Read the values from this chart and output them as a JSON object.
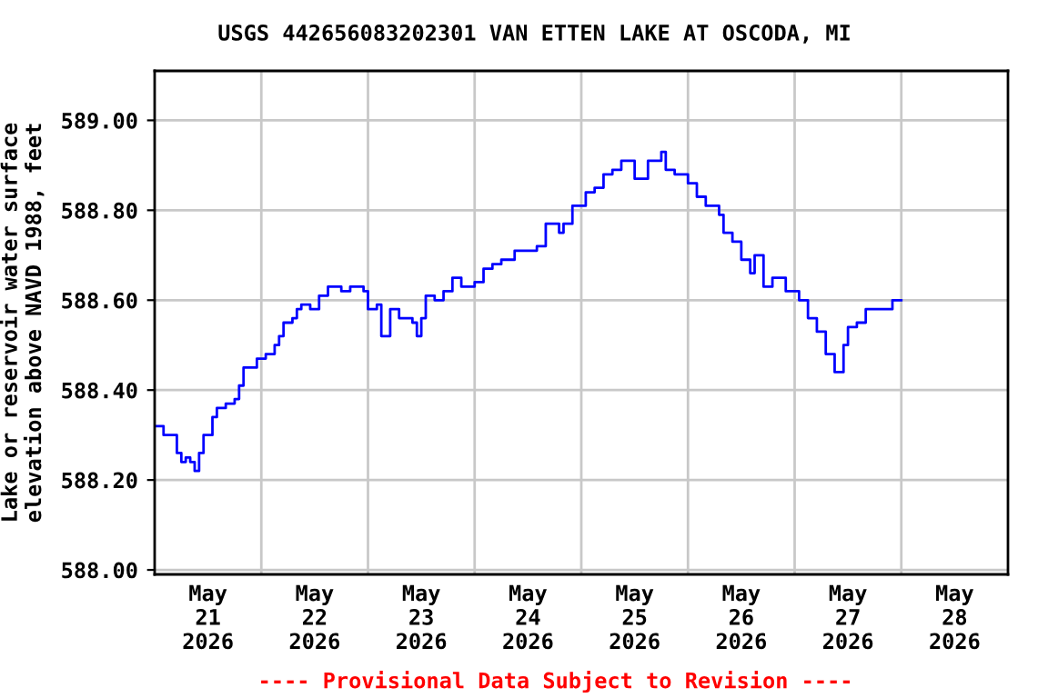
{
  "chart_data": {
    "type": "step",
    "title": "USGS 442656083202301 VAN ETTEN LAKE AT OSCODA, MI",
    "ylabel": "Lake or reservoir water surface\nelevation above NAVD 1988, feet",
    "annotations": [
      "---- Provisional Data Subject to Revision ----"
    ],
    "x": [
      "2026-05-21T00:00",
      "2026-05-21T02:00",
      "2026-05-21T04:00",
      "2026-05-21T05:00",
      "2026-05-21T06:00",
      "2026-05-21T07:00",
      "2026-05-21T08:00",
      "2026-05-21T09:00",
      "2026-05-21T10:00",
      "2026-05-21T11:00",
      "2026-05-21T13:00",
      "2026-05-21T14:00",
      "2026-05-21T16:00",
      "2026-05-21T18:00",
      "2026-05-21T19:00",
      "2026-05-21T20:00",
      "2026-05-21T23:00",
      "2026-05-22T01:00",
      "2026-05-22T03:00",
      "2026-05-22T04:00",
      "2026-05-22T05:00",
      "2026-05-22T07:00",
      "2026-05-22T08:00",
      "2026-05-22T09:00",
      "2026-05-22T11:00",
      "2026-05-22T13:00",
      "2026-05-22T15:00",
      "2026-05-22T18:00",
      "2026-05-22T20:00",
      "2026-05-22T23:00",
      "2026-05-23T00:00",
      "2026-05-23T02:00",
      "2026-05-23T03:00",
      "2026-05-23T05:00",
      "2026-05-23T07:00",
      "2026-05-23T10:00",
      "2026-05-23T11:00",
      "2026-05-23T12:00",
      "2026-05-23T13:00",
      "2026-05-23T15:00",
      "2026-05-23T17:00",
      "2026-05-23T19:00",
      "2026-05-23T21:00",
      "2026-05-24T00:00",
      "2026-05-24T02:00",
      "2026-05-24T04:00",
      "2026-05-24T06:00",
      "2026-05-24T09:00",
      "2026-05-24T11:00",
      "2026-05-24T14:00",
      "2026-05-24T16:00",
      "2026-05-24T18:00",
      "2026-05-24T19:00",
      "2026-05-24T20:00",
      "2026-05-24T22:00",
      "2026-05-25T01:00",
      "2026-05-25T03:00",
      "2026-05-25T05:00",
      "2026-05-25T07:00",
      "2026-05-25T09:00",
      "2026-05-25T12:00",
      "2026-05-25T15:00",
      "2026-05-25T18:00",
      "2026-05-25T19:00",
      "2026-05-25T21:00",
      "2026-05-26T00:00",
      "2026-05-26T02:00",
      "2026-05-26T04:00",
      "2026-05-26T07:00",
      "2026-05-26T08:00",
      "2026-05-26T10:00",
      "2026-05-26T12:00",
      "2026-05-26T14:00",
      "2026-05-26T15:00",
      "2026-05-26T17:00",
      "2026-05-26T19:00",
      "2026-05-26T20:00",
      "2026-05-26T22:00",
      "2026-05-27T01:00",
      "2026-05-27T03:00",
      "2026-05-27T05:00",
      "2026-05-27T07:00",
      "2026-05-27T09:00",
      "2026-05-27T11:00",
      "2026-05-27T12:00",
      "2026-05-27T14:00",
      "2026-05-27T16:00",
      "2026-05-27T18:00",
      "2026-05-27T21:00",
      "2026-05-27T22:00",
      "2026-05-28T00:00"
    ],
    "values": [
      588.32,
      588.3,
      588.3,
      588.26,
      588.24,
      588.25,
      588.24,
      588.22,
      588.26,
      588.3,
      588.34,
      588.36,
      588.37,
      588.38,
      588.41,
      588.45,
      588.47,
      588.48,
      588.5,
      588.52,
      588.55,
      588.56,
      588.58,
      588.59,
      588.58,
      588.61,
      588.63,
      588.62,
      588.63,
      588.62,
      588.58,
      588.59,
      588.52,
      588.58,
      588.56,
      588.55,
      588.52,
      588.56,
      588.61,
      588.6,
      588.62,
      588.65,
      588.63,
      588.64,
      588.67,
      588.68,
      588.69,
      588.71,
      588.71,
      588.72,
      588.77,
      588.77,
      588.75,
      588.77,
      588.81,
      588.84,
      588.85,
      588.88,
      588.89,
      588.91,
      588.87,
      588.91,
      588.93,
      588.89,
      588.88,
      588.86,
      588.83,
      588.81,
      588.79,
      588.75,
      588.73,
      588.69,
      588.66,
      588.7,
      588.63,
      588.65,
      588.65,
      588.62,
      588.6,
      588.56,
      588.53,
      588.48,
      588.44,
      588.5,
      588.54,
      588.55,
      588.58,
      588.58,
      588.58,
      588.6,
      588.6
    ],
    "color": "#0000ff",
    "xlim": [
      "2026-05-21T00:00",
      "2026-05-29T00:00"
    ],
    "xticks": [
      {
        "value": "2026-05-21T12:00",
        "label": "May\n21\n2026"
      },
      {
        "value": "2026-05-22T00:00",
        "label": null
      },
      {
        "value": "2026-05-22T12:00",
        "label": "May\n22\n2026"
      },
      {
        "value": "2026-05-23T00:00",
        "label": null
      },
      {
        "value": "2026-05-23T12:00",
        "label": "May\n23\n2026"
      },
      {
        "value": "2026-05-24T00:00",
        "label": null
      },
      {
        "value": "2026-05-24T12:00",
        "label": "May\n24\n2026"
      },
      {
        "value": "2026-05-25T00:00",
        "label": null
      },
      {
        "value": "2026-05-25T12:00",
        "label": "May\n25\n2026"
      },
      {
        "value": "2026-05-26T00:00",
        "label": null
      },
      {
        "value": "2026-05-26T12:00",
        "label": "May\n26\n2026"
      },
      {
        "value": "2026-05-27T00:00",
        "label": null
      },
      {
        "value": "2026-05-27T12:00",
        "label": "May\n27\n2026"
      },
      {
        "value": "2026-05-28T00:00",
        "label": null
      },
      {
        "value": "2026-05-28T12:00",
        "label": "May\n28\n2026"
      }
    ],
    "ylim": [
      587.99,
      589.11
    ],
    "yticks": [
      {
        "value": 588.0,
        "label": "588.00"
      },
      {
        "value": 588.2,
        "label": "588.20"
      },
      {
        "value": 588.4,
        "label": "588.40"
      },
      {
        "value": 588.6,
        "label": "588.60"
      },
      {
        "value": 588.8,
        "label": "588.80"
      },
      {
        "value": 589.0,
        "label": "589.00"
      }
    ],
    "grid": true
  }
}
